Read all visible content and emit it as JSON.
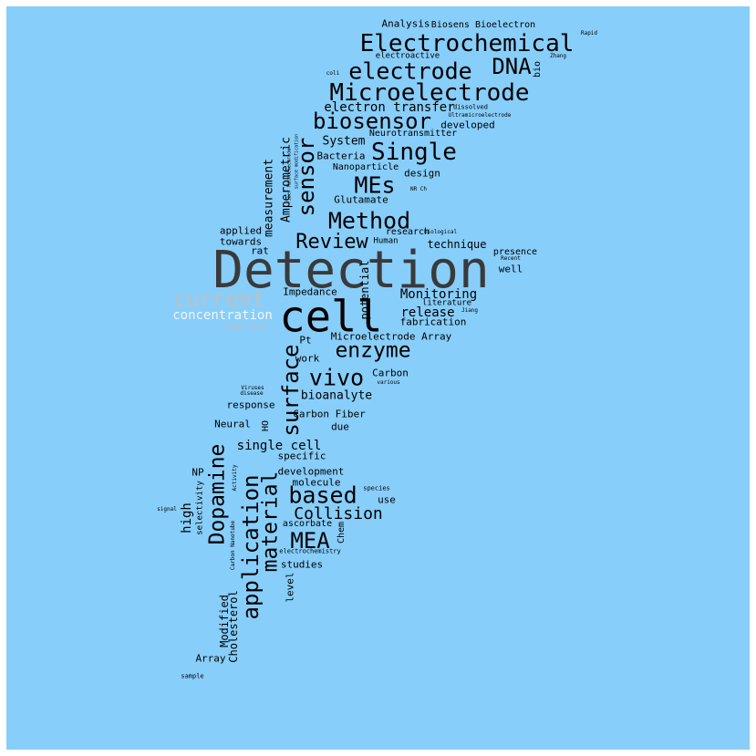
{
  "colors": {
    "background": "#87CEFA",
    "text": "#000000",
    "large_word": "#3a3a3a",
    "light_word": "#bfbfbf",
    "white_word": "#f4f4f4"
  },
  "words": {
    "detection": "Detection",
    "cell": "cell",
    "electrochemical": "Electrochemical",
    "electrode": "electrode",
    "dna": "DNA",
    "microelectrode": "Microelectrode",
    "biosensor": "biosensor",
    "single": "Single",
    "sensor": "sensor",
    "mes": "MEs",
    "method": "Method",
    "review": "Review",
    "current": "current",
    "concentration": "concentration",
    "enzyme": "enzyme",
    "vivo": "vivo",
    "surface": "surface",
    "dopamine": "Dopamine",
    "application": "application",
    "material": "material",
    "based": "based",
    "collision": "Collision",
    "mea": "MEA",
    "electron_transfer": "electron transfer",
    "measurement": "measurement",
    "amperometric": "Amperometric",
    "analysis": "Analysis",
    "biosens_bioelectron": "Biosens Bioelectron",
    "electroactive": "electroactive",
    "rapid": "Rapid",
    "zhang": "Zhang",
    "bio": "bio",
    "coli": "coli",
    "dissolved": "dissolved",
    "ultramicroelectrode": "Ultramicroelectrode",
    "developed": "developed",
    "neurotransmitter": "Neurotransmitter",
    "system": "System",
    "bacteria": "Bacteria",
    "nanoparticle": "Nanoparticle",
    "design": "design",
    "glutamate": "Glutamate",
    "nr_ch": "NR Ch",
    "applied": "applied",
    "towards": "towards",
    "rat": "rat",
    "research": "research",
    "biological": "biological",
    "human": "Human",
    "technique": "technique",
    "presence": "presence",
    "recent": "Recent",
    "well": "well",
    "impedance": "Impedance",
    "potential": "potential",
    "monitoring": "Monitoring",
    "literature": "literature",
    "jiang": "Jiang",
    "release": "release",
    "fabrication": "fabrication",
    "reaction": "reaction",
    "pt": "Pt",
    "microelectrode_array": "Microelectrode Array",
    "work": "work",
    "carbon": "Carbon",
    "various": "various",
    "viruses": "Viruses",
    "disease": "disease",
    "bioanalyte": "bioanalyte",
    "response": "response",
    "carbon_fiber": "Carbon Fiber",
    "neural": "Neural",
    "ho": "HO",
    "due": "due",
    "single_cell": "single cell",
    "specific": "specific",
    "np": "NP",
    "activity": "Activity",
    "development": "development",
    "molecule": "molecule",
    "selectivity": "selectivity",
    "high": "high",
    "species": "species",
    "use": "use",
    "signal": "signal",
    "carbon_nanotube": "Carbon Nanotube",
    "ascorbate": "ascorbate",
    "chem": "Chem",
    "electrochemistry": "electrochemistry",
    "studies": "studies",
    "level": "level",
    "modified": "Modified",
    "cholesterol": "Cholesterol",
    "array": "Array",
    "sample": "sample",
    "fiber_microelectrode": "Fiber Microelectrode",
    "surface_modification": "surface modification"
  }
}
